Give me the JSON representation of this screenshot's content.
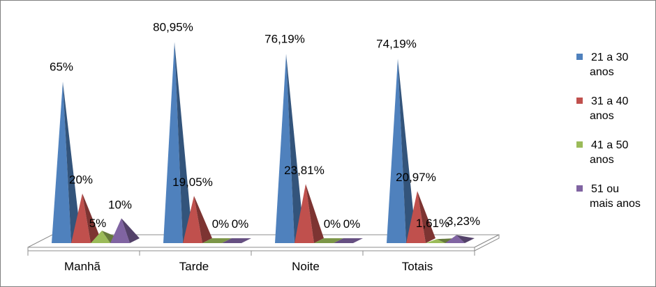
{
  "chart_data": {
    "type": "bar",
    "variant": "3d-pyramid",
    "categories": [
      "Manhã",
      "Tarde",
      "Noite",
      "Totais"
    ],
    "series": [
      {
        "name": "21 a 30 anos",
        "name_lines": [
          "21 a 30",
          "anos"
        ],
        "color": "#4f81bd",
        "values": [
          65,
          80.95,
          76.19,
          74.19
        ],
        "labels": [
          "65%",
          "80,95%",
          "76,19%",
          "74,19%"
        ]
      },
      {
        "name": "31 a 40 anos",
        "name_lines": [
          "31 a 40",
          "anos"
        ],
        "color": "#c0504d",
        "values": [
          20,
          19.05,
          23.81,
          20.97
        ],
        "labels": [
          "20%",
          "19,05%",
          "23,81%",
          "20,97%"
        ]
      },
      {
        "name": "41 a 50 anos",
        "name_lines": [
          "41 a 50",
          "anos"
        ],
        "color": "#9bbb59",
        "values": [
          5,
          0,
          0,
          1.61
        ],
        "labels": [
          "5%",
          "0%",
          "0%",
          "1,61%"
        ]
      },
      {
        "name": "51 ou mais anos",
        "name_lines": [
          "51 ou",
          "mais anos"
        ],
        "color": "#8064a2",
        "values": [
          10,
          0,
          0,
          3.23
        ],
        "labels": [
          "10%",
          "0%",
          "0%",
          "3,23%"
        ]
      }
    ],
    "ylim": [
      0,
      85
    ],
    "grid": false,
    "legend_position": "right"
  }
}
